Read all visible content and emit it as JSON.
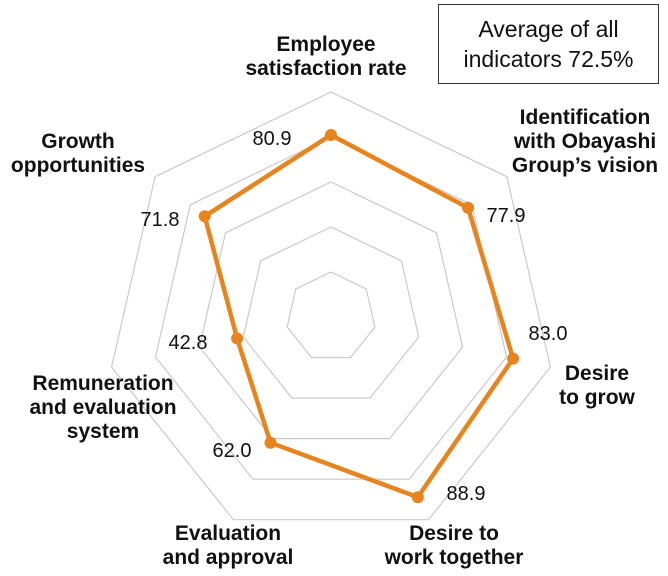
{
  "summary": {
    "line1": "Average of all",
    "line2": "indicators 72.5%"
  },
  "colors": {
    "series": "#E8841E",
    "grid": "#C9C9C9"
  },
  "chart_data": {
    "type": "radar",
    "range": [
      0,
      100
    ],
    "rings": [
      20,
      40,
      60,
      80,
      100
    ],
    "axes": [
      {
        "label_lines": [
          "Employee",
          "satisfaction rate"
        ],
        "value": 80.9,
        "value_label": "80.9"
      },
      {
        "label_lines": [
          "Identification",
          "with Obayashi",
          "Group’s vision"
        ],
        "value": 77.9,
        "value_label": "77.9"
      },
      {
        "label_lines": [
          "Desire",
          "to grow"
        ],
        "value": 83.0,
        "value_label": "83.0"
      },
      {
        "label_lines": [
          "Desire to",
          "work together"
        ],
        "value": 88.9,
        "value_label": "88.9"
      },
      {
        "label_lines": [
          "Evaluation",
          "and approval"
        ],
        "value": 62.0,
        "value_label": "62.0"
      },
      {
        "label_lines": [
          "Remuneration",
          "and evaluation",
          "system"
        ],
        "value": 42.8,
        "value_label": "42.8"
      },
      {
        "label_lines": [
          "Growth",
          "opportunities"
        ],
        "value": 71.8,
        "value_label": "71.8"
      }
    ]
  }
}
